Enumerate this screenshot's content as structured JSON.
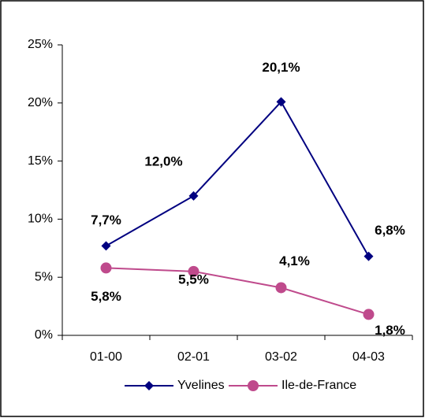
{
  "chart_data": {
    "type": "line",
    "categories": [
      "01-00",
      "02-01",
      "03-02",
      "04-03"
    ],
    "series": [
      {
        "name": "Yvelines",
        "color": "#000080",
        "marker": "diamond",
        "values": [
          7.7,
          12.0,
          20.1,
          6.8
        ],
        "value_labels": [
          "7,7%",
          "12,0%",
          "20,1%",
          "6,8%"
        ]
      },
      {
        "name": "Ile-de-France",
        "color": "#bf4a8c",
        "marker": "circle",
        "values": [
          5.8,
          5.5,
          4.1,
          1.8
        ],
        "value_labels": [
          "5,8%",
          "5,5%",
          "4,1%",
          "1,8%"
        ]
      }
    ],
    "ylim": [
      0,
      25
    ],
    "yticks": [
      {
        "value": 0,
        "label": "0%"
      },
      {
        "value": 5,
        "label": "5%"
      },
      {
        "value": 10,
        "label": "10%"
      },
      {
        "value": 15,
        "label": "15%"
      },
      {
        "value": 20,
        "label": "20%"
      },
      {
        "value": 25,
        "label": "25%"
      }
    ],
    "grid": false,
    "legend": "bottom"
  }
}
